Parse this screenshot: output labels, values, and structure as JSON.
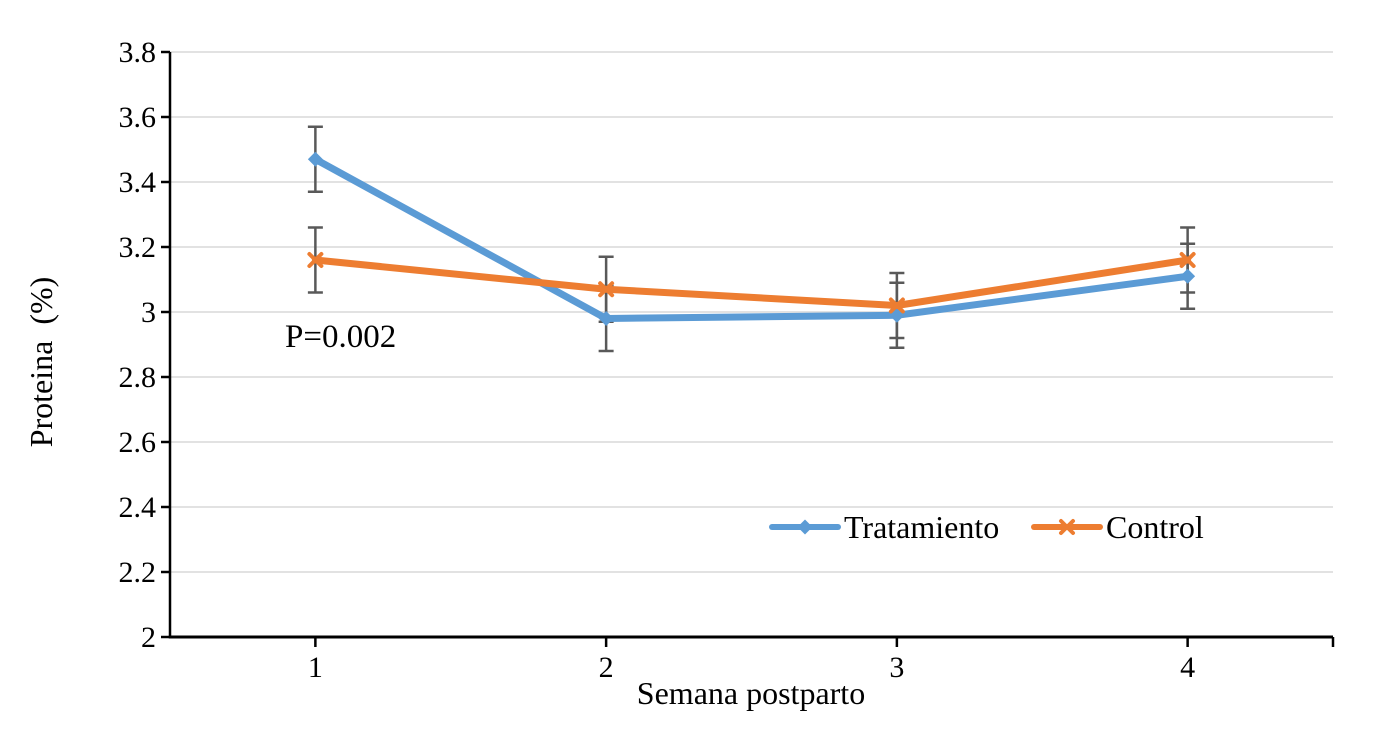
{
  "figure": {
    "background": "#FFFFFF"
  },
  "chart_data": {
    "type": "line",
    "title": "",
    "xlabel": "Semana postparto",
    "ylabel": "Proteina  (%)",
    "categories": [
      "1",
      "2",
      "3",
      "4"
    ],
    "series": [
      {
        "name": "Tratamiento",
        "color": "#5B9BD5",
        "marker": "diamond",
        "values": [
          3.47,
          2.98,
          2.99,
          3.11
        ],
        "error": [
          0.1,
          0.1,
          0.1,
          0.1
        ]
      },
      {
        "name": "Control",
        "color": "#ED7D31",
        "marker": "x",
        "values": [
          3.16,
          3.07,
          3.02,
          3.16
        ],
        "error": [
          0.1,
          0.1,
          0.1,
          0.1
        ]
      }
    ],
    "ylim": [
      2,
      3.8
    ],
    "ytick_step": 0.2,
    "grid": true,
    "legend_position": "inside-bottom-right",
    "annotation": {
      "text": "P=0.002"
    },
    "colors": {
      "error_bar": "#595959",
      "gridline": "#D9D9D9",
      "axis": "#000000",
      "text": "#000000"
    }
  }
}
